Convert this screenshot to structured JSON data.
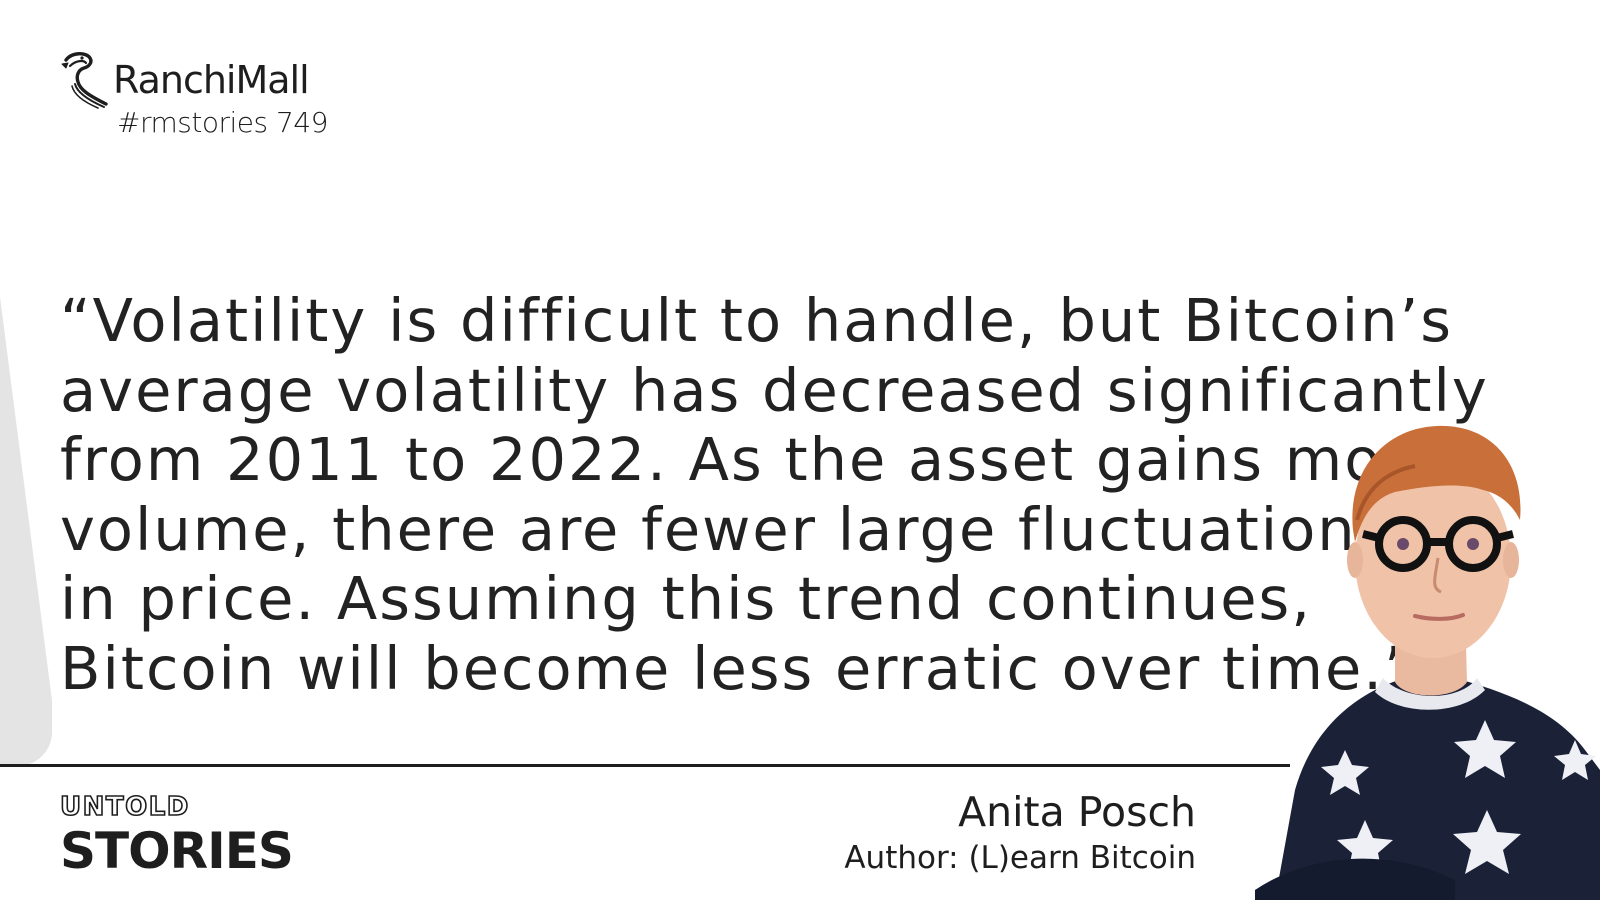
{
  "header": {
    "brand_name": "RanchiMall",
    "story_tag": "#rmstories 749",
    "logo_icon": "seahorse-logo-icon"
  },
  "quote": {
    "lines": [
      "“Volatility is difficult to handle, but Bitcoin’s",
      "average volatility has decreased significantly",
      "from 2011 to 2022. As the asset gains more",
      "volume, there are fewer large fluctuations",
      "in price. Assuming this trend continues,",
      "Bitcoin will become less erratic over time.”"
    ]
  },
  "footer": {
    "untold_label": "UNTOLD",
    "stories_label": "STORIES",
    "author_name": "Anita Posch",
    "author_title": "Author: (L)earn Bitcoin"
  },
  "colors": {
    "text": "#1e1e1e",
    "background": "#ffffff",
    "accent_grey": "#e4e4e4",
    "shirt": "#1b2238",
    "hair": "#c9703a"
  }
}
